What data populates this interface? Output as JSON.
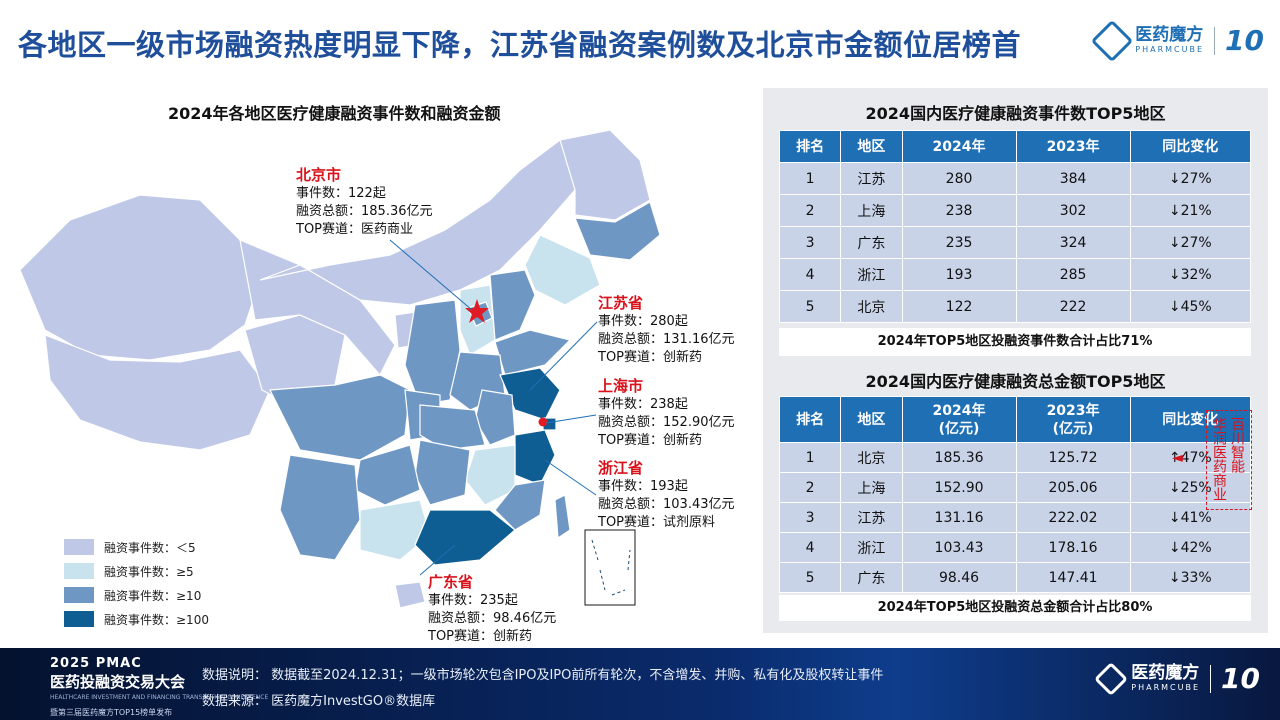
{
  "header": {
    "title": "各地区一级市场融资热度明显下降，江苏省融资案例数及北京市金额位居榜首",
    "logo_cn": "医药魔方",
    "logo_en": "PHARMCUBE",
    "logo_badge": "10"
  },
  "map": {
    "title": "2024年各地区医疗健康融资事件数和融资金额",
    "callouts": [
      {
        "name": "北京市",
        "events": "事件数：122起",
        "amount": "融资总额：185.36亿元",
        "track": "TOP赛道：医药商业"
      },
      {
        "name": "江苏省",
        "events": "事件数：280起",
        "amount": "融资总额：131.16亿元",
        "track": "TOP赛道：创新药"
      },
      {
        "name": "上海市",
        "events": "事件数：238起",
        "amount": "融资总额：152.90亿元",
        "track": "TOP赛道：创新药"
      },
      {
        "name": "浙江省",
        "events": "事件数：193起",
        "amount": "融资总额：103.43亿元",
        "track": "TOP赛道：试剂原料"
      },
      {
        "name": "广东省",
        "events": "事件数：235起",
        "amount": "融资总额：98.46亿元",
        "track": "TOP赛道：创新药"
      }
    ],
    "legend": [
      {
        "label": "融资事件数：＜5",
        "color": "#bfc8e6"
      },
      {
        "label": "融资事件数：≥5",
        "color": "#c8e3ee"
      },
      {
        "label": "融资事件数：≥10",
        "color": "#6f97c4"
      },
      {
        "label": "融资事件数：≥100",
        "color": "#0e5d93"
      }
    ],
    "colors": {
      "low": "#bfc8e6",
      "light": "#c8e3ee",
      "mid": "#6f97c4",
      "high": "#0e5d93",
      "marker": "#e01b23"
    }
  },
  "table1": {
    "title": "2024国内医疗健康融资事件数TOP5地区",
    "headers": [
      "排名",
      "地区",
      "2024年",
      "2023年",
      "同比变化"
    ],
    "rows": [
      [
        "1",
        "江苏",
        "280",
        "384",
        "↓27%"
      ],
      [
        "2",
        "上海",
        "238",
        "302",
        "↓21%"
      ],
      [
        "3",
        "广东",
        "235",
        "324",
        "↓27%"
      ],
      [
        "4",
        "浙江",
        "193",
        "285",
        "↓32%"
      ],
      [
        "5",
        "北京",
        "122",
        "222",
        "↓45%"
      ]
    ],
    "summary": "2024年TOP5地区投融资事件数合计占比71%"
  },
  "table2": {
    "title": "2024国内医疗健康融资总金额TOP5地区",
    "headers": [
      "排名",
      "地区",
      "2024年\n(亿元)",
      "2023年\n(亿元)",
      "同比变化"
    ],
    "rows": [
      [
        "1",
        "北京",
        "185.36",
        "125.72",
        "↑47%"
      ],
      [
        "2",
        "上海",
        "152.90",
        "205.06",
        "↓25%"
      ],
      [
        "3",
        "江苏",
        "131.16",
        "222.02",
        "↓41%"
      ],
      [
        "4",
        "浙江",
        "103.43",
        "178.16",
        "↓42%"
      ],
      [
        "5",
        "广东",
        "98.46",
        "147.41",
        "↓33%"
      ]
    ],
    "summary": "2024年TOP5地区投融资总金额合计占比80%"
  },
  "side_note": {
    "col1": "百川智能",
    "col2": "华润医药商业",
    "arrow": "◄"
  },
  "footer": {
    "pmac_line1": "2025 PMAC",
    "pmac_line2": "医药投融资交易大会",
    "pmac_line3": "HEALTHCARE INVESTMENT AND FINANCING TRANSACTION CONFERENCE",
    "pmac_line4": "暨第三届医药魔方TOP15榜单发布",
    "note": "数据说明：  数据截至2024.12.31；一级市场轮次包含IPO及IPO前所有轮次，不含增发、并购、私有化及股权转让事件",
    "source": "数据来源：  医药魔方InvestGO®数据库",
    "logo_cn": "医药魔方",
    "logo_en": "PHARMCUBE",
    "logo_badge": "10"
  }
}
